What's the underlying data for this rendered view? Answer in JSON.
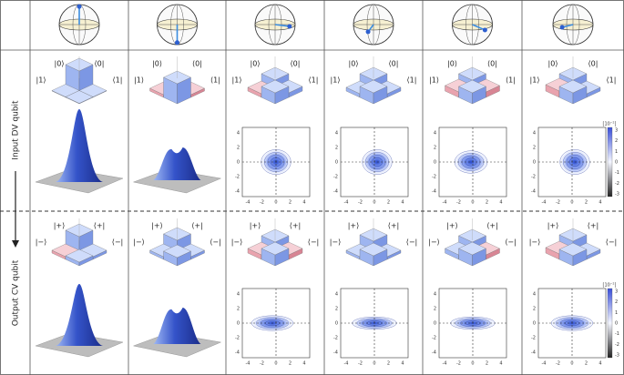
{
  "row_labels": [
    "Input DV qubit",
    "Output CV qubit"
  ],
  "density_labels": {
    "input": [
      "|1⟩",
      "|0⟩",
      "⟨0|",
      "⟨1|"
    ],
    "output": [
      "|−⟩",
      "|+⟩",
      "⟨+|",
      "⟨−|"
    ]
  },
  "wigner_ticks": [
    -4,
    -2,
    0,
    2,
    4
  ],
  "colorbar": {
    "unit": "[10⁻²]",
    "ticks": [
      3,
      2,
      1,
      0,
      -1,
      -2,
      -3
    ]
  }
}
